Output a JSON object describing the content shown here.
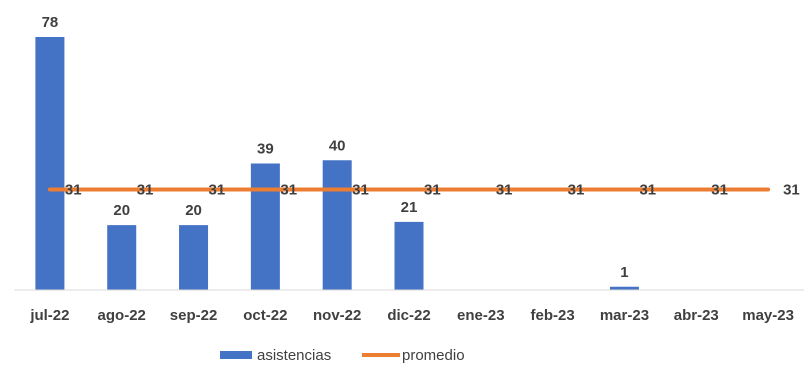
{
  "chart_data": {
    "type": "bar",
    "title": "",
    "xlabel": "",
    "ylabel": "",
    "categories": [
      "jul-22",
      "ago-22",
      "sep-22",
      "oct-22",
      "nov-22",
      "dic-22",
      "ene-23",
      "feb-23",
      "mar-23",
      "abr-23",
      "may-23"
    ],
    "series": [
      {
        "name": "asistencias",
        "kind": "bar",
        "color": "#4472C4",
        "values": [
          78,
          20,
          20,
          39,
          40,
          21,
          null,
          null,
          1,
          null,
          null
        ]
      },
      {
        "name": "promedio",
        "kind": "line",
        "color": "#ED7D31",
        "values": [
          31,
          31,
          31,
          31,
          31,
          31,
          31,
          31,
          31,
          31,
          31
        ]
      }
    ],
    "ylim": [
      0,
      78
    ],
    "grid": false,
    "legend_position": "bottom"
  }
}
